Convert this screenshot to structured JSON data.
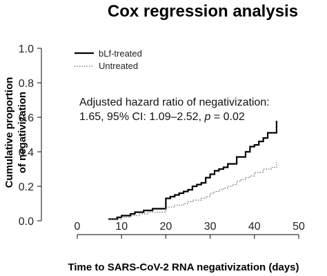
{
  "chart_data": {
    "type": "line",
    "title": "Cox regression analysis",
    "xlabel": "Time to SARS-CoV-2 RNA negativization (days)",
    "ylabel_line1": "Cumulative proportion",
    "ylabel_line2": "of negativization",
    "xlim": [
      0,
      50
    ],
    "ylim": [
      0,
      1.0
    ],
    "x_ticks": [
      0,
      10,
      20,
      30,
      40,
      50
    ],
    "y_ticks": [
      0.0,
      0.2,
      0.4,
      0.6,
      0.8,
      1.0
    ],
    "x_tick_labels": [
      "0",
      "10",
      "20",
      "30",
      "40",
      "50"
    ],
    "y_tick_labels": [
      "0.0",
      "0.2",
      "0.4",
      "0.6",
      "0.8",
      "1.0"
    ],
    "grid": false,
    "legend_position": "top-left",
    "annotation": {
      "line1": "Adjusted hazard ratio of negativization:",
      "line2_a": "1.65, 95% CI: 1.09–2.52, ",
      "line2_p": "p",
      "line2_b": " = 0.02"
    },
    "series": [
      {
        "name": "bLf-treated",
        "color": "#000000",
        "style": "solid",
        "x": [
          7,
          9,
          10,
          11,
          12,
          13,
          14,
          15,
          16,
          17,
          18,
          20,
          21,
          22,
          23,
          24,
          25,
          26,
          27,
          28,
          29,
          30,
          31,
          32,
          33,
          34,
          35,
          36,
          37,
          38,
          39,
          40,
          41,
          42,
          43,
          44,
          45
        ],
        "y": [
          0.01,
          0.02,
          0.03,
          0.03,
          0.04,
          0.05,
          0.05,
          0.06,
          0.06,
          0.07,
          0.07,
          0.13,
          0.14,
          0.15,
          0.16,
          0.17,
          0.18,
          0.2,
          0.21,
          0.22,
          0.25,
          0.27,
          0.29,
          0.3,
          0.31,
          0.33,
          0.33,
          0.37,
          0.37,
          0.4,
          0.43,
          0.44,
          0.46,
          0.48,
          0.51,
          0.51,
          0.58
        ]
      },
      {
        "name": "Untreated",
        "color": "#666666",
        "style": "dotted",
        "x": [
          7,
          9,
          10,
          12,
          14,
          16,
          18,
          20,
          22,
          24,
          25,
          26,
          27,
          28,
          29,
          30,
          31,
          32,
          33,
          34,
          35,
          36,
          37,
          38,
          39,
          40,
          41,
          42,
          43,
          44,
          45
        ],
        "y": [
          0.01,
          0.01,
          0.02,
          0.03,
          0.04,
          0.05,
          0.05,
          0.08,
          0.09,
          0.1,
          0.11,
          0.12,
          0.12,
          0.13,
          0.14,
          0.16,
          0.17,
          0.18,
          0.19,
          0.2,
          0.21,
          0.23,
          0.24,
          0.25,
          0.26,
          0.28,
          0.28,
          0.3,
          0.3,
          0.31,
          0.34
        ]
      }
    ]
  }
}
